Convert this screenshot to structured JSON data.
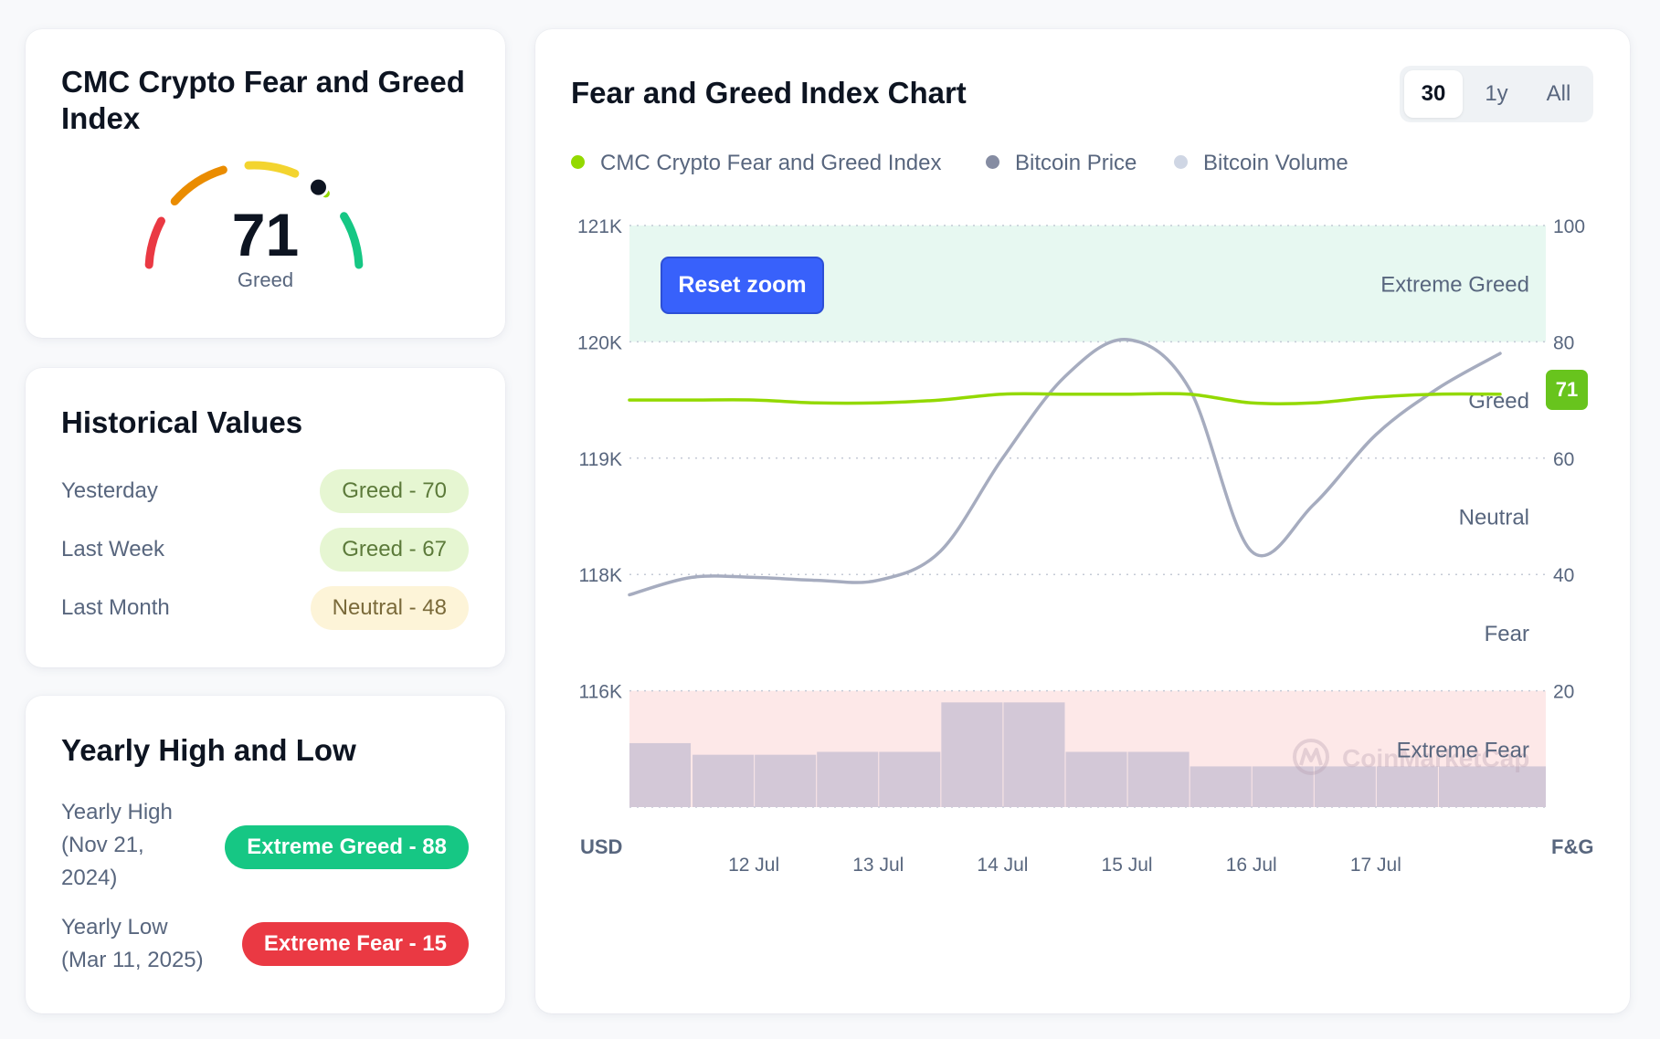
{
  "gauge": {
    "title": "CMC Crypto Fear and Greed Index",
    "value": 71,
    "value_text": "71",
    "label": "Greed",
    "segment_colors": [
      "#ea3943",
      "#ea8c00",
      "#f3d42f",
      "#93d900",
      "#16c784"
    ]
  },
  "historical": {
    "title": "Historical Values",
    "rows": [
      {
        "label": "Yesterday",
        "value": "Greed - 70"
      },
      {
        "label": "Last Week",
        "value": "Greed - 67"
      },
      {
        "label": "Last Month",
        "value": "Neutral - 48"
      }
    ]
  },
  "yearly": {
    "title": "Yearly High and Low",
    "high": {
      "label_line1": "Yearly High",
      "label_line2": "(Nov 21,",
      "label_line3": "2024)",
      "value": "Extreme Greed - 88"
    },
    "low": {
      "label_line1": "Yearly Low",
      "label_line2": "(Mar 11, 2025)",
      "value": "Extreme Fear - 15"
    }
  },
  "chart_panel": {
    "title": "Fear and Greed Index Chart",
    "range_tabs": [
      "30d",
      "1y",
      "All"
    ],
    "range_tab_visible": [
      "30",
      "1y",
      "All"
    ],
    "active_range": "30d",
    "reset_zoom_label": "Reset zoom",
    "current_badge": "71"
  },
  "chart_data": {
    "type": "line",
    "legend": [
      {
        "name": "CMC Crypto Fear and Greed Index",
        "color": "#93d900"
      },
      {
        "name": "Bitcoin Price",
        "color": "#858ca2"
      },
      {
        "name": "Bitcoin Volume",
        "color": "#cfd6e4"
      }
    ],
    "x_ticks": [
      "12 Jul",
      "13 Jul",
      "14 Jul",
      "15 Jul",
      "16 Jul",
      "17 Jul"
    ],
    "left_axis": {
      "unit": "USD",
      "ticks": [
        "121K",
        "120K",
        "119K",
        "118K",
        "116K"
      ]
    },
    "right_axis": {
      "unit": "F&G",
      "ticks": [
        "100",
        "80",
        "60",
        "40",
        "20"
      ]
    },
    "zones": [
      "Extreme Greed",
      "Greed",
      "Neutral",
      "Fear",
      "Extreme Fear"
    ],
    "zone_colors": {
      "extreme_greed": "#e7f8f1",
      "extreme_fear": "#fde8e8"
    },
    "x": [
      "11 Jul 00:00",
      "11 Jul 12:00",
      "12 Jul 00:00",
      "12 Jul 12:00",
      "13 Jul 00:00",
      "13 Jul 12:00",
      "14 Jul 00:00",
      "14 Jul 12:00",
      "15 Jul 00:00",
      "15 Jul 12:00",
      "16 Jul 00:00",
      "16 Jul 12:00",
      "17 Jul 00:00",
      "17 Jul 12:00",
      "17 Jul 18:00"
    ],
    "series": [
      {
        "name": "CMC Crypto Fear and Greed Index",
        "axis": "right",
        "values": [
          70,
          70,
          70,
          69.5,
          69.5,
          70,
          71,
          71,
          71,
          71,
          69.5,
          69.5,
          70.5,
          71,
          71
        ]
      },
      {
        "name": "Bitcoin Price",
        "axis": "left",
        "values": [
          117650,
          117950,
          117950,
          117900,
          117900,
          118200,
          119000,
          119700,
          120020,
          119600,
          118200,
          118600,
          119200,
          119600,
          119900
        ]
      },
      {
        "name": "Bitcoin Volume",
        "axis": "right",
        "values": [
          11,
          9,
          9,
          9.5,
          9.5,
          18,
          18,
          9.5,
          9.5,
          7,
          7,
          7,
          7,
          7,
          7
        ]
      }
    ],
    "watermark": "CoinMarketCap"
  }
}
